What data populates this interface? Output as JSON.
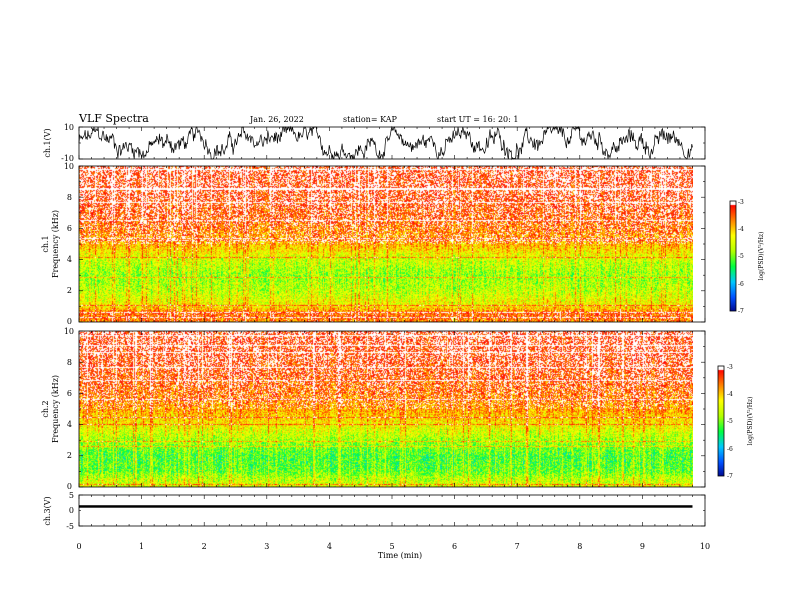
{
  "header": {
    "title": "VLF Spectra",
    "date": "Jan. 26, 2022",
    "station": "station= KAP",
    "start": "start  UT =   16: 20: 1"
  },
  "colors": {
    "wave": "#000000",
    "colormap": [
      "#000080",
      "#0050ff",
      "#00c8ff",
      "#00ff40",
      "#b4ff00",
      "#ffff00",
      "#ff8000",
      "#ff0000",
      "#ffffff"
    ]
  },
  "chart_data": [
    {
      "type": "line",
      "panel": "ch1-waveform",
      "ylabel": "ch.1(V)",
      "ylim": [
        -10,
        10
      ],
      "yticks": [
        "10",
        "-10"
      ],
      "xlim": [
        0,
        10
      ],
      "x_extent_min": 9.8,
      "description_values": {
        "amplitude_range_V": [
          -9.5,
          9.5
        ]
      }
    },
    {
      "type": "heatmap",
      "panel": "ch1-spectrogram",
      "ylabel_line1": "ch.1",
      "ylabel_line2": "Frequency  (kHz)",
      "ylim": [
        0,
        10
      ],
      "yticks": [
        "0",
        "2",
        "4",
        "6",
        "8",
        "10"
      ],
      "xlim": [
        0,
        10
      ],
      "x_extent_min": 9.8,
      "z_range_log": [
        -7,
        -3
      ],
      "colorbar_label": "log(PSD)(V²/Hz)",
      "colorbar_ticks": [
        "-3",
        "-4",
        "-5",
        "-6",
        "-7"
      ],
      "band_profile": [
        {
          "f": 0.0,
          "v": -3.6
        },
        {
          "f": 0.5,
          "v": -3.4
        },
        {
          "f": 1.0,
          "v": -4.2
        },
        {
          "f": 2.0,
          "v": -4.6
        },
        {
          "f": 3.0,
          "v": -4.8
        },
        {
          "f": 4.0,
          "v": -4.5
        },
        {
          "f": 5.0,
          "v": -3.8
        },
        {
          "f": 6.5,
          "v": -3.4
        },
        {
          "f": 8.0,
          "v": -3.2
        },
        {
          "f": 10.0,
          "v": -3.1
        }
      ]
    },
    {
      "type": "heatmap",
      "panel": "ch2-spectrogram",
      "ylabel_line1": "ch.2",
      "ylabel_line2": "Frequency  (kHz)",
      "ylim": [
        0,
        10
      ],
      "yticks": [
        "0",
        "2",
        "4",
        "6",
        "8",
        "10"
      ],
      "xlim": [
        0,
        10
      ],
      "x_extent_min": 9.8,
      "z_range_log": [
        -7,
        -3
      ],
      "colorbar_label": "log(PSD)(V²/Hz)",
      "colorbar_ticks": [
        "-3",
        "-4",
        "-5",
        "-6",
        "-7"
      ],
      "band_profile": [
        {
          "f": 0.0,
          "v": -4.4
        },
        {
          "f": 0.5,
          "v": -4.6
        },
        {
          "f": 1.0,
          "v": -5.0
        },
        {
          "f": 2.0,
          "v": -5.1
        },
        {
          "f": 3.0,
          "v": -4.7
        },
        {
          "f": 4.0,
          "v": -4.2
        },
        {
          "f": 5.0,
          "v": -3.7
        },
        {
          "f": 6.5,
          "v": -3.4
        },
        {
          "f": 8.0,
          "v": -3.2
        },
        {
          "f": 10.0,
          "v": -3.1
        }
      ]
    },
    {
      "type": "line",
      "panel": "ch3-waveform",
      "ylabel": "ch.3(V)",
      "ylim": [
        -5,
        5
      ],
      "yticks": [
        "5",
        "0",
        "-5"
      ],
      "xlim": [
        0,
        10
      ],
      "x_extent_min": 9.8,
      "xlabel": "Time  (min)",
      "xticks": [
        "0",
        "1",
        "2",
        "3",
        "4",
        "5",
        "6",
        "7",
        "8",
        "9",
        "10"
      ],
      "description_values": {
        "level_V": 1.3,
        "band_halfwidth_V": 0.4
      }
    }
  ]
}
